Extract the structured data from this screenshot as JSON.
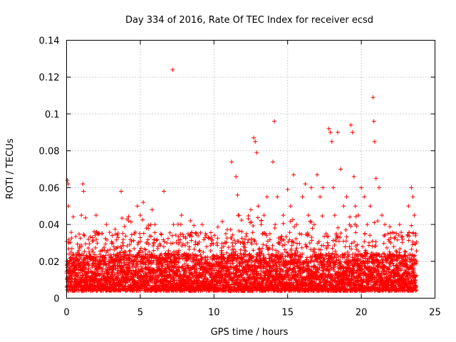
{
  "chart_data": {
    "type": "scatter",
    "title": "Day 334 of 2016, Rate Of TEC Index for receiver ecsd",
    "xlabel": "GPS time / hours",
    "ylabel": "ROTI / TECUs",
    "xlim": [
      0,
      25
    ],
    "ylim": [
      0,
      0.14
    ],
    "x_ticks": [
      0,
      5,
      10,
      15,
      20,
      25
    ],
    "x_tick_labels": [
      "0",
      "5",
      "10",
      "15",
      "20",
      "25"
    ],
    "y_ticks": [
      0,
      0.02,
      0.04,
      0.06,
      0.08,
      0.1,
      0.12,
      0.14
    ],
    "y_tick_labels": [
      "0",
      "0.02",
      "0.04",
      "0.06",
      "0.08",
      "0.1",
      "0.12",
      "0.14"
    ],
    "grid": true,
    "legend": "none",
    "marker": "plus",
    "color": "#ff0000",
    "x_range_of_data": [
      0,
      23.75
    ],
    "series": [
      {
        "x": [
          0.05,
          0.1,
          0.12,
          0.15,
          0.3,
          0.5,
          0.6,
          0.8,
          1.0,
          1.1,
          1.15,
          1.2,
          1.3,
          1.5,
          1.8,
          2.0,
          2.2,
          2.3,
          2.5,
          2.7,
          3.0,
          3.2,
          3.5,
          3.7,
          3.8,
          4.0,
          4.2,
          4.4,
          4.6,
          4.8,
          5.0,
          5.2,
          5.4,
          5.6,
          5.8,
          6.0,
          6.2,
          6.4,
          6.6,
          6.8,
          7.0,
          7.2,
          7.25,
          7.4,
          7.6,
          7.8,
          8.0,
          8.2,
          8.4,
          8.6,
          8.8,
          9.0,
          9.2,
          9.5,
          9.8,
          10.0,
          10.2,
          10.5,
          10.8,
          11.0,
          11.2,
          11.5,
          11.6,
          11.7,
          11.8,
          12.0,
          12.2,
          12.5,
          12.7,
          12.8,
          12.9,
          13.0,
          13.2,
          13.4,
          13.6,
          13.8,
          14.0,
          14.1,
          14.15,
          14.3,
          14.5,
          14.7,
          14.9,
          15.0,
          15.2,
          15.4,
          15.6,
          15.8,
          16.0,
          16.2,
          16.4,
          16.6,
          16.8,
          17.0,
          17.2,
          17.4,
          17.6,
          17.8,
          17.9,
          18.0,
          18.1,
          18.2,
          18.4,
          18.6,
          18.8,
          19.0,
          19.2,
          19.3,
          19.4,
          19.5,
          19.6,
          19.8,
          20.0,
          20.2,
          20.4,
          20.6,
          20.8,
          20.85,
          20.9,
          21.0,
          21.2,
          21.4,
          21.6,
          21.8,
          22.0,
          22.2,
          22.4,
          22.6,
          22.8,
          23.0,
          23.2,
          23.4,
          23.5,
          23.6,
          23.7
        ],
        "y": [
          0.064,
          0.062,
          0.05,
          0.03,
          0.025,
          0.018,
          0.015,
          0.02,
          0.045,
          0.062,
          0.058,
          0.034,
          0.022,
          0.016,
          0.025,
          0.045,
          0.035,
          0.02,
          0.018,
          0.04,
          0.022,
          0.028,
          0.015,
          0.058,
          0.03,
          0.025,
          0.042,
          0.02,
          0.035,
          0.05,
          0.045,
          0.052,
          0.03,
          0.02,
          0.048,
          0.04,
          0.028,
          0.035,
          0.058,
          0.03,
          0.02,
          0.124,
          0.04,
          0.02,
          0.025,
          0.045,
          0.015,
          0.03,
          0.042,
          0.022,
          0.035,
          0.018,
          0.04,
          0.028,
          0.032,
          0.015,
          0.03,
          0.025,
          0.035,
          0.02,
          0.074,
          0.066,
          0.056,
          0.045,
          0.03,
          0.028,
          0.035,
          0.048,
          0.087,
          0.085,
          0.079,
          0.05,
          0.04,
          0.045,
          0.055,
          0.035,
          0.074,
          0.096,
          0.04,
          0.055,
          0.032,
          0.045,
          0.025,
          0.059,
          0.05,
          0.067,
          0.04,
          0.035,
          0.055,
          0.062,
          0.045,
          0.06,
          0.04,
          0.067,
          0.055,
          0.06,
          0.035,
          0.092,
          0.09,
          0.085,
          0.06,
          0.045,
          0.09,
          0.07,
          0.05,
          0.055,
          0.04,
          0.094,
          0.09,
          0.066,
          0.05,
          0.045,
          0.06,
          0.055,
          0.04,
          0.05,
          0.109,
          0.096,
          0.085,
          0.065,
          0.06,
          0.045,
          0.04,
          0.035,
          0.03,
          0.028,
          0.025,
          0.04,
          0.032,
          0.025,
          0.05,
          0.06,
          0.055,
          0.045,
          0.035
        ]
      }
    ]
  }
}
